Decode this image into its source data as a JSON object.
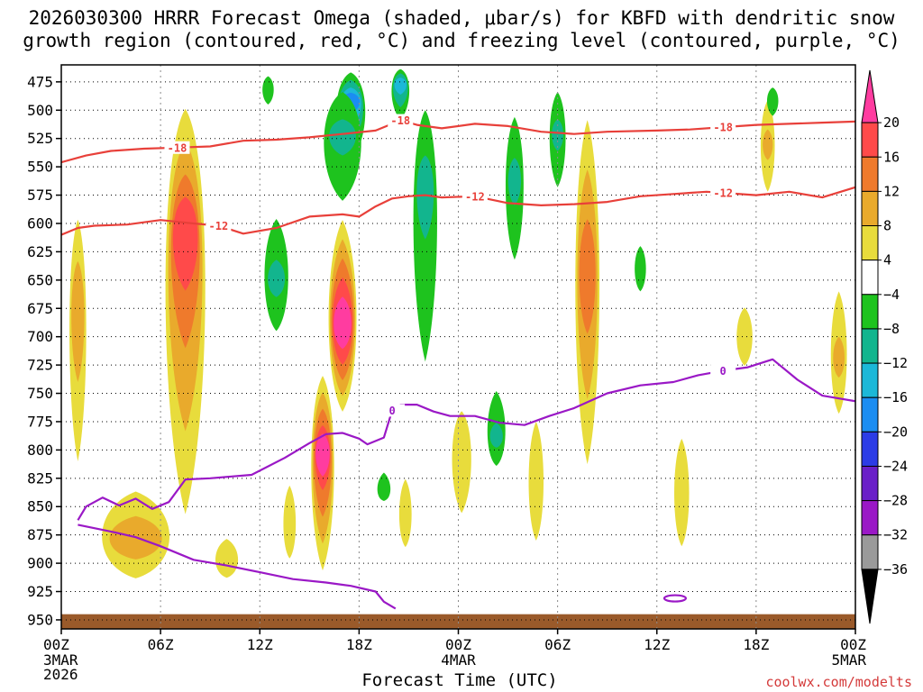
{
  "title_line1": "2026030300 HRRR Forecast Omega (shaded, μbar/s) for KBFD with dendritic snow",
  "title_line2": "growth region (contoured, red, °C) and freezing level (contoured, purple, °C)",
  "xlabel": "Forecast Time (UTC)",
  "credit": "coolwx.com/modelts",
  "chart_data": {
    "type": "time-height-cross-section",
    "station": "KBFD",
    "model": "HRRR",
    "init": "2026030300",
    "x_unit": "forecast hour",
    "x_range": [
      0,
      48
    ],
    "y_unit": "hPa",
    "y_range": [
      460,
      958
    ],
    "y_ticks": [
      475,
      500,
      525,
      550,
      575,
      600,
      625,
      650,
      675,
      700,
      725,
      750,
      775,
      800,
      825,
      850,
      875,
      900,
      925,
      950
    ],
    "x_ticks": [
      {
        "hour": 0,
        "label": "00Z",
        "sub": [
          "3MAR",
          "2026"
        ]
      },
      {
        "hour": 6,
        "label": "06Z",
        "sub": []
      },
      {
        "hour": 12,
        "label": "12Z",
        "sub": []
      },
      {
        "hour": 18,
        "label": "18Z",
        "sub": []
      },
      {
        "hour": 24,
        "label": "00Z",
        "sub": [
          "4MAR"
        ]
      },
      {
        "hour": 30,
        "label": "06Z",
        "sub": []
      },
      {
        "hour": 36,
        "label": "12Z",
        "sub": []
      },
      {
        "hour": 42,
        "label": "18Z",
        "sub": []
      },
      {
        "hour": 48,
        "label": "00Z",
        "sub": [
          "5MAR"
        ]
      }
    ],
    "colorbar": {
      "labels": [
        "20",
        "16",
        "12",
        "8",
        "4",
        "−4",
        "−8",
        "−12",
        "−16",
        "−20",
        "−24",
        "−28",
        "−32",
        "−36"
      ],
      "colors": [
        "#ff3ca0",
        "#ff4a4a",
        "#ef7a2c",
        "#e9aa2c",
        "#e8dc3c",
        "#ffffff",
        "#1ec31e",
        "#12b58e",
        "#1cb8d8",
        "#1b8df2",
        "#2c3ce6",
        "#6a1fc8",
        "#9a18c6",
        "#9a9a9a",
        "#000000"
      ]
    },
    "omega_features": [
      {
        "kind": "rise",
        "max": 24,
        "t": 17.0,
        "p": 690,
        "w": 0.9,
        "top": 580,
        "bottom": 780
      },
      {
        "kind": "rise",
        "max": 20,
        "t": 15.8,
        "p": 800,
        "w": 0.7,
        "top": 720,
        "bottom": 930
      },
      {
        "kind": "rise",
        "max": 16,
        "t": 7.5,
        "p": 600,
        "w": 1.5,
        "top": 470,
        "bottom": 930
      },
      {
        "kind": "rise",
        "max": 14,
        "t": 31.8,
        "p": 640,
        "w": 0.8,
        "top": 465,
        "bottom": 870
      },
      {
        "kind": "rise",
        "max": 10,
        "t": 4.5,
        "p": 880,
        "w": 3.0,
        "top": 815,
        "bottom": 930
      },
      {
        "kind": "rise",
        "max": 10,
        "t": 1.0,
        "p": 670,
        "w": 0.5,
        "top": 560,
        "bottom": 880
      },
      {
        "kind": "rise",
        "max": 8,
        "t": 47.0,
        "p": 720,
        "w": 0.5,
        "top": 620,
        "bottom": 800
      },
      {
        "kind": "rise",
        "max": 8,
        "t": 42.7,
        "p": 530,
        "w": 0.4,
        "top": 465,
        "bottom": 600
      },
      {
        "kind": "rise",
        "max": 6,
        "t": 37.5,
        "p": 840,
        "w": 0.5,
        "top": 740,
        "bottom": 930
      },
      {
        "kind": "rise",
        "max": 6,
        "t": 28.7,
        "p": 830,
        "w": 0.5,
        "top": 720,
        "bottom": 930
      },
      {
        "kind": "rise",
        "max": 5,
        "t": 24.2,
        "p": 800,
        "w": 0.8,
        "top": 720,
        "bottom": 930
      },
      {
        "kind": "rise",
        "max": 5,
        "t": 41.3,
        "p": 700,
        "w": 0.6,
        "top": 640,
        "bottom": 760
      },
      {
        "kind": "rise",
        "max": 5,
        "t": 20.8,
        "p": 860,
        "w": 0.4,
        "top": 780,
        "bottom": 920
      },
      {
        "kind": "rise",
        "max": 5,
        "t": 13.8,
        "p": 870,
        "w": 0.4,
        "top": 780,
        "bottom": 930
      },
      {
        "kind": "rise",
        "max": 5,
        "t": 10.0,
        "p": 900,
        "w": 1.0,
        "top": 850,
        "bottom": 930
      },
      {
        "kind": "sink",
        "min": -16,
        "t": 17.5,
        "p": 490,
        "w": 1.0,
        "top": 460,
        "bottom": 560
      },
      {
        "kind": "sink",
        "min": -14,
        "t": 20.5,
        "p": 475,
        "w": 0.5,
        "top": 460,
        "bottom": 520
      },
      {
        "kind": "sink",
        "min": -8,
        "t": 17.0,
        "p": 520,
        "w": 1.6,
        "top": 460,
        "bottom": 620
      },
      {
        "kind": "sink",
        "min": -8,
        "t": 22.0,
        "p": 560,
        "w": 0.9,
        "top": 460,
        "bottom": 830
      },
      {
        "kind": "sink",
        "min": -8,
        "t": 13.0,
        "p": 650,
        "w": 0.9,
        "top": 560,
        "bottom": 725
      },
      {
        "kind": "sink",
        "min": -8,
        "t": 26.3,
        "p": 790,
        "w": 0.6,
        "top": 720,
        "bottom": 830
      },
      {
        "kind": "sink",
        "min": -8,
        "t": 27.4,
        "p": 560,
        "w": 0.6,
        "top": 470,
        "bottom": 680
      },
      {
        "kind": "sink",
        "min": -8,
        "t": 30.0,
        "p": 520,
        "w": 0.5,
        "top": 460,
        "bottom": 600
      },
      {
        "kind": "sink",
        "min": -6,
        "t": 43.0,
        "p": 490,
        "w": 0.3,
        "top": 470,
        "bottom": 520
      },
      {
        "kind": "sink",
        "min": -6,
        "t": 35.0,
        "p": 640,
        "w": 0.3,
        "top": 600,
        "bottom": 680
      },
      {
        "kind": "sink",
        "min": -6,
        "t": 19.5,
        "p": 840,
        "w": 0.4,
        "top": 800,
        "bottom": 850
      },
      {
        "kind": "sink",
        "min": -6,
        "t": 12.5,
        "p": 480,
        "w": 0.3,
        "top": 460,
        "bottom": 510
      }
    ],
    "contours": [
      {
        "name": "dendritic-minus18",
        "level": -18,
        "color": "#e8403a",
        "label_hours": [
          8.0,
          20.7,
          40.0
        ],
        "points": [
          [
            0,
            546
          ],
          [
            1.5,
            540
          ],
          [
            3,
            536
          ],
          [
            5,
            534
          ],
          [
            7,
            533
          ],
          [
            9,
            532
          ],
          [
            11,
            527
          ],
          [
            13,
            526
          ],
          [
            15,
            524
          ],
          [
            17,
            521
          ],
          [
            19,
            518
          ],
          [
            20.5,
            509
          ],
          [
            21.5,
            513
          ],
          [
            23,
            516
          ],
          [
            25,
            512
          ],
          [
            27,
            514
          ],
          [
            29,
            519
          ],
          [
            31,
            521
          ],
          [
            33,
            519
          ],
          [
            36,
            518
          ],
          [
            38,
            517
          ],
          [
            40,
            515
          ],
          [
            42,
            513
          ],
          [
            44,
            512
          ],
          [
            46,
            511
          ],
          [
            48,
            510
          ]
        ]
      },
      {
        "name": "dendritic-minus12",
        "level": -12,
        "color": "#e8403a",
        "label_hours": [
          9.0,
          24.8,
          40.0
        ],
        "points": [
          [
            0,
            610
          ],
          [
            1,
            604
          ],
          [
            2,
            602
          ],
          [
            4,
            601
          ],
          [
            6,
            597
          ],
          [
            8,
            600
          ],
          [
            9.5,
            602
          ],
          [
            11,
            609
          ],
          [
            13,
            604
          ],
          [
            15,
            594
          ],
          [
            17,
            592
          ],
          [
            18,
            594
          ],
          [
            19,
            585
          ],
          [
            20,
            578
          ],
          [
            21,
            576
          ],
          [
            22,
            575
          ],
          [
            23,
            577
          ],
          [
            25,
            576
          ],
          [
            27,
            582
          ],
          [
            29,
            584
          ],
          [
            31,
            583
          ],
          [
            33,
            581
          ],
          [
            35,
            576
          ],
          [
            37,
            574
          ],
          [
            39,
            572
          ],
          [
            40,
            573
          ],
          [
            42,
            575
          ],
          [
            44,
            572
          ],
          [
            46,
            577
          ],
          [
            48,
            568
          ]
        ]
      },
      {
        "name": "freezing-level",
        "level": 0,
        "color": "#9a18c6",
        "label_hours": [
          20.0,
          40.0
        ],
        "points": [
          [
            1,
            862
          ],
          [
            1.5,
            850
          ],
          [
            2.5,
            842
          ],
          [
            3.5,
            849
          ],
          [
            4.5,
            843
          ],
          [
            5.5,
            852
          ],
          [
            6.5,
            846
          ],
          [
            7.5,
            826
          ],
          [
            9,
            825
          ],
          [
            11.5,
            822
          ],
          [
            13.5,
            807
          ],
          [
            15,
            794
          ],
          [
            16,
            786
          ],
          [
            17,
            785
          ],
          [
            18,
            790
          ],
          [
            18.5,
            795
          ],
          [
            19.5,
            789
          ],
          [
            20,
            765
          ],
          [
            20.5,
            760
          ],
          [
            21.5,
            760
          ],
          [
            22.5,
            766
          ],
          [
            23.5,
            770
          ],
          [
            25,
            770
          ],
          [
            26.5,
            776
          ],
          [
            28,
            778
          ],
          [
            29.5,
            770
          ],
          [
            31,
            763
          ],
          [
            33,
            750
          ],
          [
            35,
            743
          ],
          [
            37,
            740
          ],
          [
            38.5,
            734
          ],
          [
            40,
            730
          ],
          [
            41.5,
            727
          ],
          [
            43,
            720
          ],
          [
            44.5,
            738
          ],
          [
            46,
            752
          ],
          [
            48,
            757
          ]
        ]
      },
      {
        "name": "freezing-level-low-branch",
        "level": 0,
        "color": "#9a18c6",
        "label_hours": [],
        "points": [
          [
            1,
            866
          ],
          [
            3,
            872
          ],
          [
            4.5,
            877
          ],
          [
            6,
            885
          ],
          [
            8,
            897
          ],
          [
            10,
            902
          ],
          [
            12,
            908
          ],
          [
            14,
            914
          ],
          [
            16,
            917
          ],
          [
            17.5,
            920
          ],
          [
            19,
            925
          ],
          [
            19.5,
            934
          ],
          [
            20.2,
            940
          ]
        ]
      }
    ],
    "ground": {
      "color": "#9a5a2a",
      "top_hpa": 945
    }
  }
}
